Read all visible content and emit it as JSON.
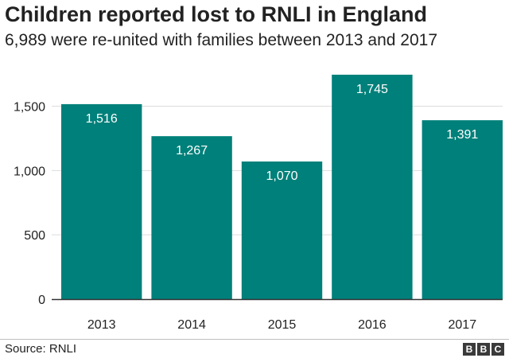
{
  "chart_data": {
    "type": "bar",
    "title": "Children reported lost to RNLI in England",
    "subtitle": "6,989 were re-united with families between 2013 and 2017",
    "categories": [
      "2013",
      "2014",
      "2015",
      "2016",
      "2017"
    ],
    "values": [
      1516,
      1267,
      1070,
      1745,
      1391
    ],
    "value_labels": [
      "1,516",
      "1,267",
      "1,070",
      "1,745",
      "1,391"
    ],
    "yticks": [
      0,
      500,
      1000,
      1500
    ],
    "ytick_labels": [
      "0",
      "500",
      "1,000",
      "1,500"
    ],
    "ylim": [
      0,
      1800
    ],
    "grid": true,
    "bar_color": "#00807a",
    "xlabel": "",
    "ylabel": ""
  },
  "source": "Source: RNLI",
  "logo": [
    "B",
    "B",
    "C"
  ]
}
